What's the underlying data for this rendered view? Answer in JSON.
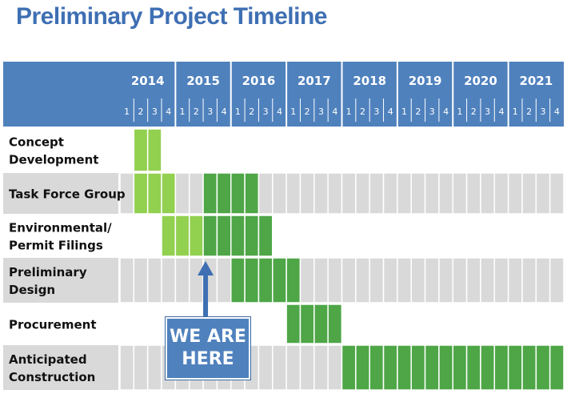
{
  "title": "Preliminary Project Timeline",
  "callout": {
    "text": "WE ARE\nHERE"
  },
  "colors": {
    "header": "#4f81bd",
    "light_green": "#92d050",
    "dark_green": "#4ea647",
    "row_gray": "#d9d9d9",
    "callout": "#4f81bd"
  },
  "chart_data": {
    "type": "gantt",
    "years": [
      "2014",
      "2015",
      "2016",
      "2017",
      "2018",
      "2019",
      "2020",
      "2021"
    ],
    "quarters": [
      "1",
      "2",
      "3",
      "4"
    ],
    "tasks": [
      {
        "label": "Concept\nDevelopment",
        "shade": "white",
        "bars": [
          {
            "start": "2014 Q2",
            "end": "2014 Q3",
            "color": "light_green"
          }
        ]
      },
      {
        "label": "Task Force Group",
        "shade": "gray",
        "bars": [
          {
            "start": "2014 Q2",
            "end": "2014 Q4",
            "color": "light_green"
          },
          {
            "start": "2015 Q3",
            "end": "2016 Q2",
            "color": "dark_green"
          }
        ]
      },
      {
        "label": "Environmental/\nPermit Filings",
        "shade": "white",
        "bars": [
          {
            "start": "2014 Q4",
            "end": "2015 Q2",
            "color": "light_green"
          },
          {
            "start": "2015 Q3",
            "end": "2016 Q3",
            "color": "dark_green"
          }
        ]
      },
      {
        "label": "Preliminary\nDesign",
        "shade": "gray",
        "bars": [
          {
            "start": "2016 Q1",
            "end": "2017 Q1",
            "color": "dark_green"
          }
        ]
      },
      {
        "label": "Procurement",
        "shade": "white",
        "bars": [
          {
            "start": "2017 Q1",
            "end": "2017 Q4",
            "color": "dark_green"
          }
        ]
      },
      {
        "label": "Anticipated\nConstruction",
        "shade": "gray",
        "bars": [
          {
            "start": "2018 Q1",
            "end": "2021 Q4",
            "color": "dark_green"
          }
        ]
      }
    ],
    "current_marker": "2015 Q3"
  }
}
